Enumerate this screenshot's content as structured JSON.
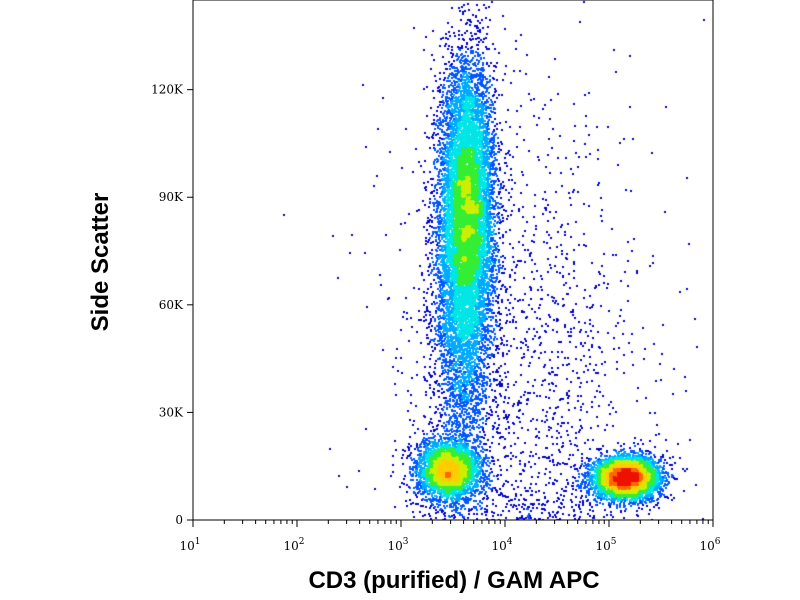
{
  "chart_data": {
    "type": "scatter",
    "title": "",
    "xlabel": "CD3 (purified) / GAM APC",
    "ylabel": "Side Scatter",
    "x_scale": "log",
    "xlim": [
      10,
      1000000
    ],
    "ylim": [
      0,
      145000
    ],
    "x_ticks": [
      {
        "value": 10,
        "base": "10",
        "exp": "1"
      },
      {
        "value": 100,
        "base": "10",
        "exp": "2"
      },
      {
        "value": 1000,
        "base": "10",
        "exp": "3"
      },
      {
        "value": 10000,
        "base": "10",
        "exp": "4"
      },
      {
        "value": 100000,
        "base": "10",
        "exp": "5"
      },
      {
        "value": 1000000,
        "base": "10",
        "exp": "6"
      }
    ],
    "y_ticks": [
      {
        "value": 0,
        "label": "0"
      },
      {
        "value": 30000,
        "label": "30K"
      },
      {
        "value": 60000,
        "label": "60K"
      },
      {
        "value": 90000,
        "label": "90K"
      },
      {
        "value": 120000,
        "label": "120K"
      }
    ],
    "colormap": [
      "#0000cc",
      "#0055ff",
      "#00aaff",
      "#00e5e5",
      "#33ee33",
      "#ccee00",
      "#ffcc00",
      "#ff6600",
      "#ee1100"
    ],
    "populations": [
      {
        "x_log_center": 3.63,
        "x_log_sd": 0.13,
        "y_center": 88000,
        "y_sd": 20000,
        "weight": 0.42
      },
      {
        "x_log_center": 3.58,
        "x_log_sd": 0.14,
        "y_center": 55000,
        "y_sd": 22000,
        "weight": 0.12
      },
      {
        "x_log_center": 3.45,
        "x_log_sd": 0.15,
        "y_center": 14000,
        "y_sd": 4000,
        "weight": 0.17
      },
      {
        "x_log_center": 5.15,
        "x_log_sd": 0.16,
        "y_center": 12000,
        "y_sd": 3000,
        "weight": 0.22
      },
      {
        "x_log_center": 4.2,
        "x_log_sd": 0.6,
        "y_center": 40000,
        "y_sd": 40000,
        "weight": 0.07
      }
    ],
    "grid": false,
    "legend": "none"
  }
}
